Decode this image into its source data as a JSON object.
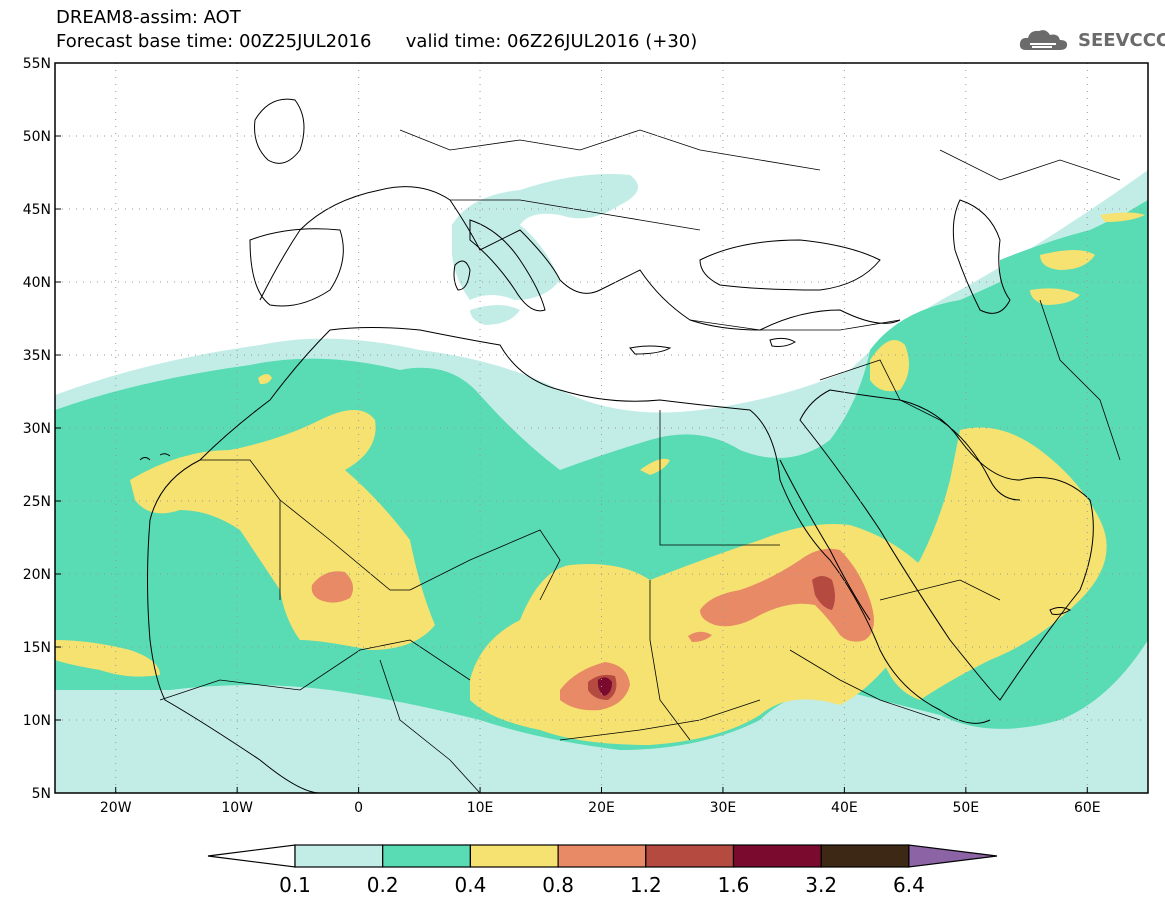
{
  "title": {
    "line1": "DREAM8-assim: AOT",
    "line2": "Forecast base time: 00Z25JUL2016      valid time: 06Z26JUL2016 (+30)"
  },
  "brand": {
    "name": "SEEVCCC",
    "icon": "cloud-logo-icon"
  },
  "map": {
    "lon_range": [
      -25,
      65
    ],
    "lat_range": [
      5,
      55
    ],
    "lon_ticks": [
      "20W",
      "10W",
      "0",
      "10E",
      "20E",
      "30E",
      "40E",
      "50E",
      "60E"
    ],
    "lat_ticks": [
      "5N",
      "10N",
      "15N",
      "20N",
      "25N",
      "30N",
      "35N",
      "40N",
      "45N",
      "50N",
      "55N"
    ],
    "grid": "dotted"
  },
  "colorbar": {
    "labels": [
      "0.1",
      "0.2",
      "0.4",
      "0.8",
      "1.2",
      "1.6",
      "3.2",
      "6.4"
    ],
    "colors": [
      "#ffffff",
      "#c2ede7",
      "#59dbb4",
      "#f5e270",
      "#e88a66",
      "#b54a40",
      "#7a0a2e",
      "#3d2816",
      "#8c63a5"
    ]
  },
  "field_colors": {
    "c1": "#c2ede7",
    "c2": "#59dbb4",
    "c3": "#f5e270",
    "c4": "#e88a66",
    "c5": "#b54a40",
    "c6": "#7a0a2e"
  }
}
